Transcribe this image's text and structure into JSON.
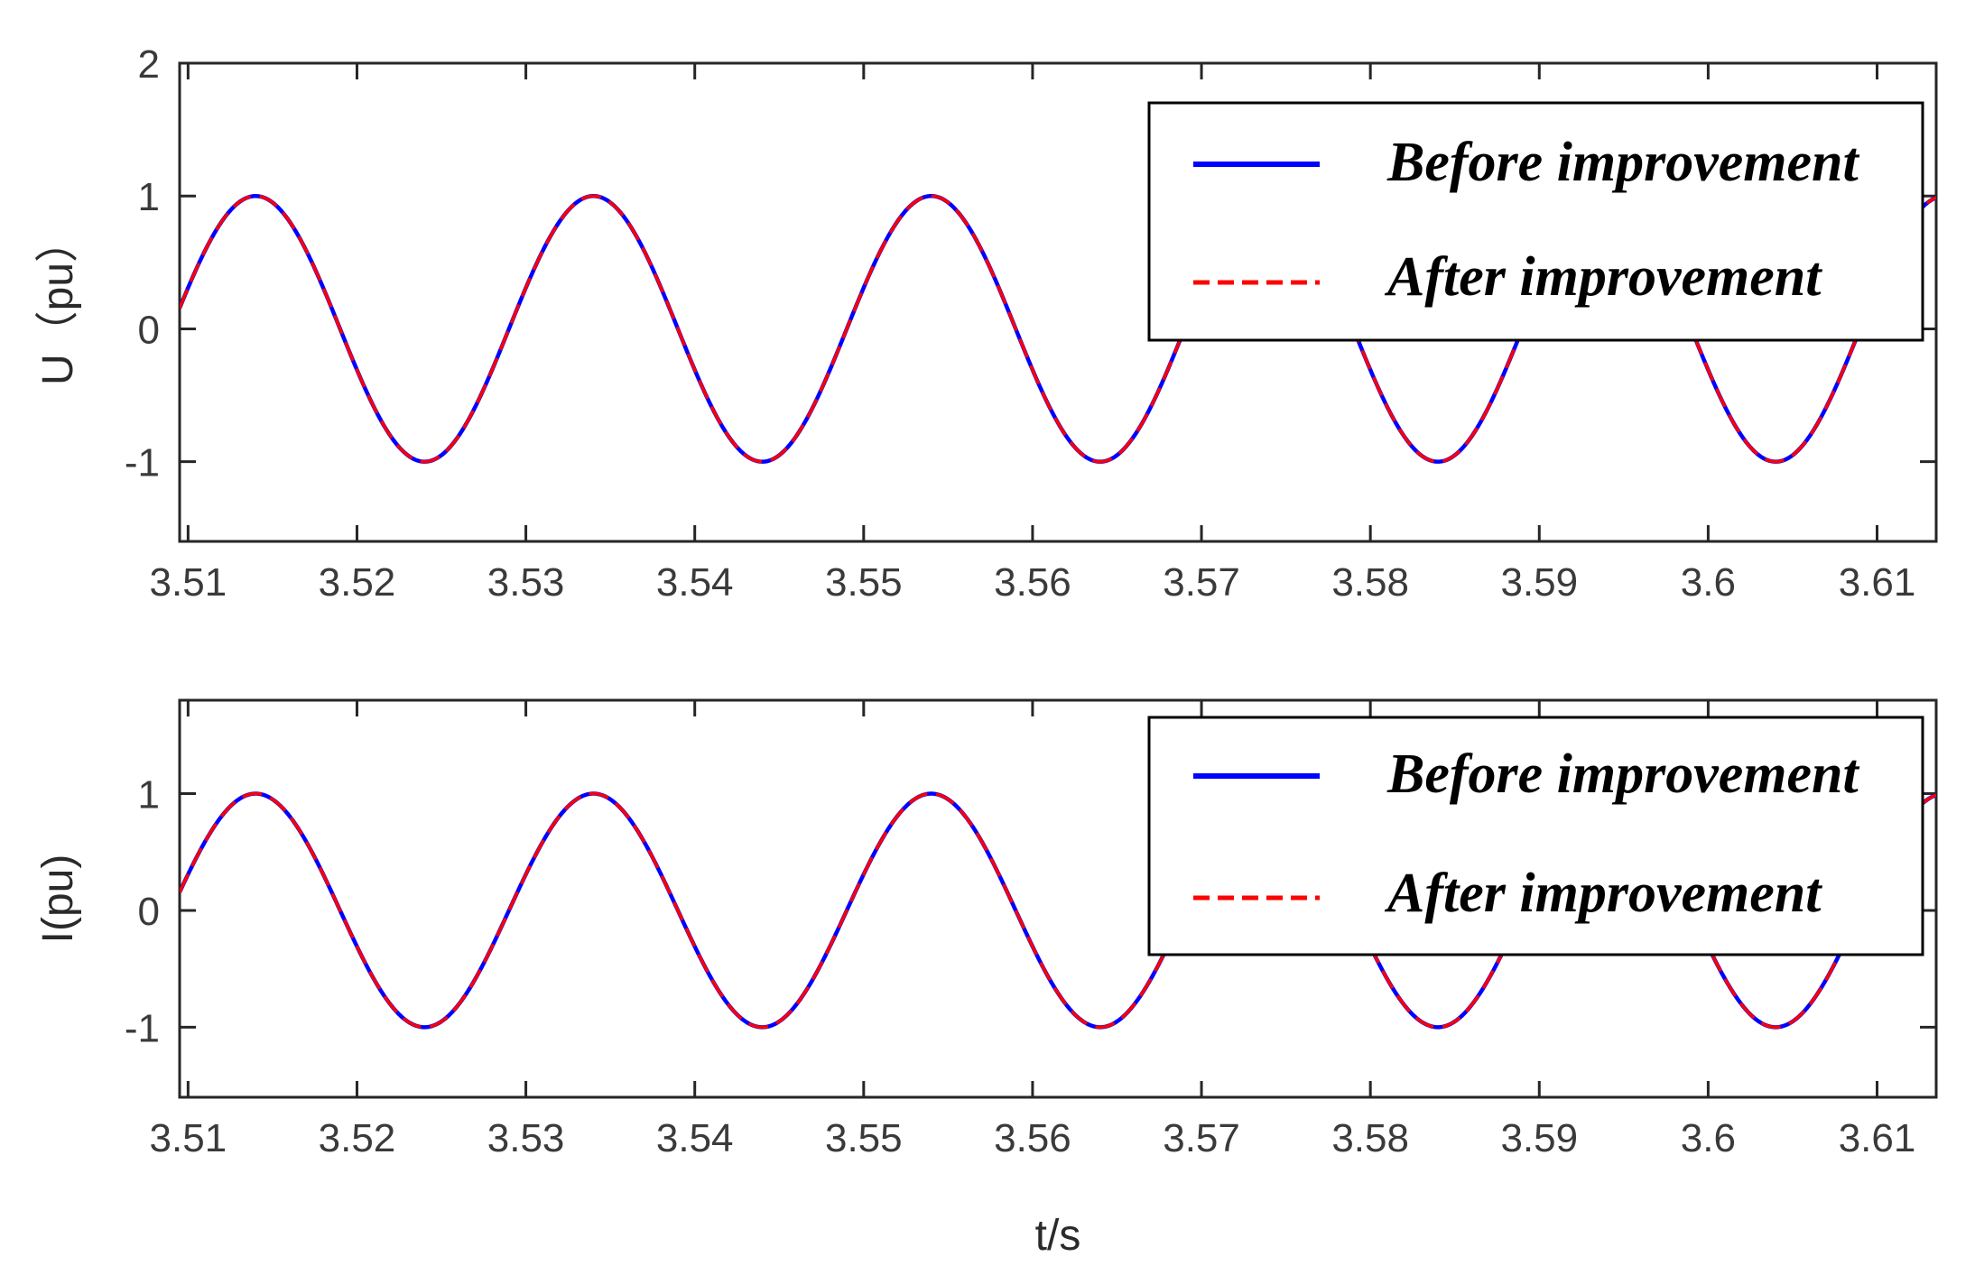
{
  "chart_data": [
    {
      "type": "line",
      "ylabel": "U（pu）",
      "xlabel": "",
      "xlim": [
        3.5095,
        3.6135
      ],
      "ylim": [
        -1.6,
        2.0
      ],
      "xticks": [
        "3.51",
        "3.52",
        "3.53",
        "3.54",
        "3.55",
        "3.56",
        "3.57",
        "3.58",
        "3.59",
        "3.6",
        "3.61"
      ],
      "yticks": [
        "2",
        "1",
        "0",
        "-1"
      ],
      "ytick_values": [
        2,
        1,
        0,
        -1
      ],
      "signal": {
        "amplitude": 1.0,
        "frequency_hz": 50,
        "phase_deg": 198
      },
      "x_range": [
        3.5095,
        3.6135
      ],
      "series": [
        {
          "name": "Before improvement",
          "color": "#0000ff",
          "style": "solid"
        },
        {
          "name": "After improvement",
          "color": "#ff0000",
          "style": "dashed"
        }
      ],
      "legend": {
        "position": "top-right"
      }
    },
    {
      "type": "line",
      "ylabel": "I(pu)",
      "xlabel": "t/s",
      "xlim": [
        3.5095,
        3.6135
      ],
      "ylim": [
        -1.6,
        1.8
      ],
      "xticks": [
        "3.51",
        "3.52",
        "3.53",
        "3.54",
        "3.55",
        "3.56",
        "3.57",
        "3.58",
        "3.59",
        "3.6",
        "3.61"
      ],
      "yticks": [
        "1",
        "0",
        "-1"
      ],
      "ytick_values": [
        1,
        0,
        -1
      ],
      "signal": {
        "amplitude": 1.0,
        "frequency_hz": 50,
        "phase_deg": 198
      },
      "x_range": [
        3.5095,
        3.6135
      ],
      "series": [
        {
          "name": "Before improvement",
          "color": "#0000ff",
          "style": "solid"
        },
        {
          "name": "After improvement",
          "color": "#ff0000",
          "style": "dashed"
        }
      ],
      "legend": {
        "position": "top-right"
      }
    }
  ]
}
